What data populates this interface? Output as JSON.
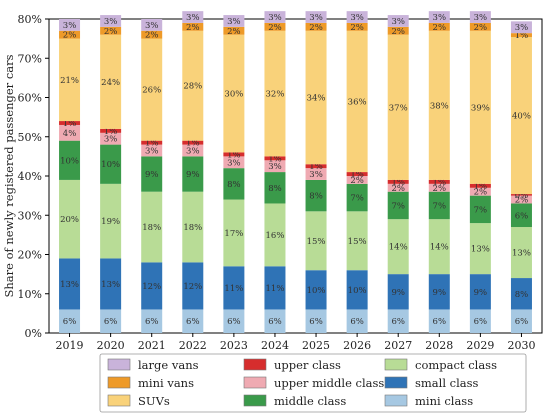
{
  "chart_data": {
    "type": "bar",
    "stacked": true,
    "ylabel": "Share of newly registered passenger cars",
    "xlabel": "",
    "ylim": [
      0,
      80
    ],
    "yticks": [
      "0%",
      "10%",
      "20%",
      "30%",
      "40%",
      "50%",
      "60%",
      "70%",
      "80%"
    ],
    "grid": false,
    "legend_position": "bottom",
    "categories": [
      "2019",
      "2020",
      "2021",
      "2022",
      "2023",
      "2024",
      "2025",
      "2026",
      "2027",
      "2028",
      "2029",
      "2030"
    ],
    "series": [
      {
        "name": "mini class",
        "color": "#a6c8e2",
        "values": [
          6,
          6,
          6,
          6,
          6,
          6,
          6,
          6,
          6,
          6,
          6,
          6
        ],
        "labels": [
          "6%",
          "6%",
          "6%",
          "6%",
          "6%",
          "6%",
          "6%",
          "6%",
          "6%",
          "6%",
          "6%",
          "6%"
        ]
      },
      {
        "name": "small class",
        "color": "#2f73b6",
        "values": [
          13,
          13,
          12,
          12,
          11,
          11,
          10,
          10,
          9,
          9,
          9,
          8
        ],
        "labels": [
          "13%",
          "13%",
          "12%",
          "12%",
          "11%",
          "11%",
          "10%",
          "10%",
          "9%",
          "9%",
          "9%",
          "8%"
        ]
      },
      {
        "name": "compact class",
        "color": "#b8dc96",
        "values": [
          20,
          19,
          18,
          18,
          17,
          16,
          15,
          15,
          14,
          14,
          13,
          13
        ],
        "labels": [
          "20%",
          "19%",
          "18%",
          "18%",
          "17%",
          "16%",
          "15%",
          "15%",
          "14%",
          "14%",
          "13%",
          "13%"
        ]
      },
      {
        "name": "middle class",
        "color": "#3a9a4a",
        "values": [
          10,
          10,
          9,
          9,
          8,
          8,
          8,
          7,
          7,
          7,
          7,
          6
        ],
        "labels": [
          "10%",
          "10%",
          "9%",
          "9%",
          "8%",
          "8%",
          "8%",
          "7%",
          "7%",
          "7%",
          "7%",
          "6%"
        ]
      },
      {
        "name": "upper middle class",
        "color": "#efaab2",
        "values": [
          4,
          3,
          3,
          3,
          3,
          3,
          3,
          2,
          2,
          2,
          2,
          2
        ],
        "labels": [
          "4%",
          "3%",
          "3%",
          "3%",
          "3%",
          "3%",
          "3%",
          "2%",
          "2%",
          "2%",
          "2%",
          "2%"
        ]
      },
      {
        "name": "upper class",
        "color": "#d62d2d",
        "values": [
          1,
          1,
          1,
          1,
          1,
          1,
          1,
          1,
          1,
          1,
          1,
          0.4
        ],
        "labels": [
          "1%",
          "1%",
          "1%",
          "1%",
          "1%",
          "1%",
          "1%",
          "1%",
          "1%",
          "1%",
          "1%",
          "0%"
        ]
      },
      {
        "name": "SUVs",
        "color": "#f9d27a",
        "values": [
          21,
          24,
          26,
          28,
          30,
          32,
          34,
          36,
          37,
          38,
          39,
          40
        ],
        "labels": [
          "21%",
          "24%",
          "26%",
          "28%",
          "30%",
          "32%",
          "34%",
          "36%",
          "37%",
          "38%",
          "39%",
          "40%"
        ]
      },
      {
        "name": "mini vans",
        "color": "#ee9a28",
        "values": [
          2,
          2,
          2,
          2,
          2,
          2,
          2,
          2,
          2,
          2,
          2,
          1
        ],
        "labels": [
          "2%",
          "2%",
          "2%",
          "2%",
          "2%",
          "2%",
          "2%",
          "2%",
          "2%",
          "2%",
          "2%",
          "1%"
        ]
      },
      {
        "name": "large vans",
        "color": "#c9b3da",
        "values": [
          3,
          3,
          3,
          3,
          3,
          3,
          3,
          3,
          3,
          3,
          3,
          3
        ],
        "labels": [
          "3%",
          "3%",
          "3%",
          "3%",
          "3%",
          "3%",
          "3%",
          "3%",
          "3%",
          "3%",
          "3%",
          "3%"
        ]
      }
    ],
    "legend_order": [
      "large vans",
      "upper class",
      "compact class",
      "mini vans",
      "upper middle class",
      "small class",
      "SUVs",
      "middle class",
      "mini class"
    ]
  }
}
